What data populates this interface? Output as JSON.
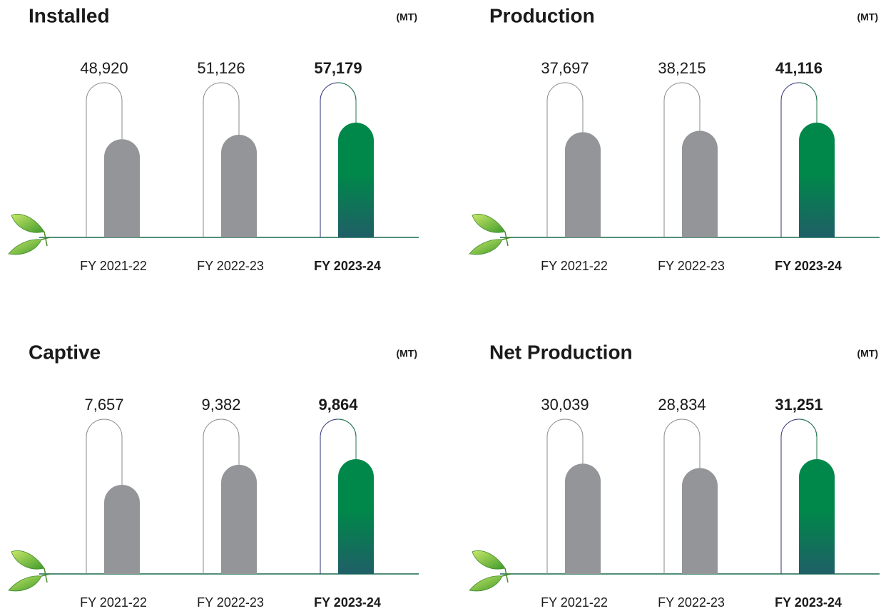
{
  "chart_data": [
    {
      "type": "bar",
      "title": "Installed",
      "unit": "(MT)",
      "categories": [
        "FY 2021-22",
        "FY 2022-23",
        "FY 2023-24"
      ],
      "values": [
        48920,
        51126,
        57179
      ],
      "value_labels": [
        "48,920",
        "51,126",
        "57,179"
      ],
      "colors": [
        "#939598",
        "#939598",
        "#00874a"
      ]
    },
    {
      "type": "bar",
      "title": "Production",
      "unit": "(MT)",
      "categories": [
        "FY 2021-22",
        "FY 2022-23",
        "FY 2023-24"
      ],
      "values": [
        37697,
        38215,
        41116
      ],
      "value_labels": [
        "37,697",
        "38,215",
        "41,116"
      ],
      "colors": [
        "#939598",
        "#939598",
        "#00874a"
      ]
    },
    {
      "type": "bar",
      "title": "Captive",
      "unit": "(MT)",
      "categories": [
        "FY 2021-22",
        "FY 2022-23",
        "FY 2023-24"
      ],
      "values": [
        7657,
        9382,
        9864
      ],
      "value_labels": [
        "7,657",
        "9,382",
        "9,864"
      ],
      "colors": [
        "#939598",
        "#939598",
        "#00874a"
      ]
    },
    {
      "type": "bar",
      "title": "Net Production",
      "unit": "(MT)",
      "categories": [
        "FY 2021-22",
        "FY 2022-23",
        "FY 2023-24"
      ],
      "values": [
        30039,
        28834,
        31251
      ],
      "value_labels": [
        "30,039",
        "28,834",
        "31,251"
      ],
      "colors": [
        "#939598",
        "#939598",
        "#00874a"
      ]
    }
  ]
}
